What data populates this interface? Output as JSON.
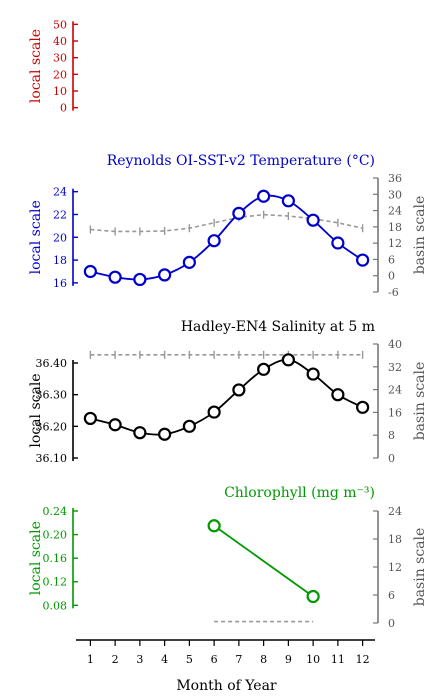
{
  "chart_data": {
    "type": "line",
    "x": [
      1,
      2,
      3,
      4,
      5,
      6,
      7,
      8,
      9,
      10,
      11,
      12
    ],
    "xlabel": "Month of Year",
    "xlim": [
      0.5,
      12.5
    ],
    "panels": [
      {
        "title": "",
        "left_label": "local scale",
        "left_ticks": [
          "0",
          "10",
          "20",
          "30",
          "40",
          "50"
        ],
        "ylim_left": [
          -5,
          55
        ],
        "color": "#cc0000",
        "series": []
      },
      {
        "title": "Reynolds OI-SST-v2 Temperature (°C)",
        "left_label": "local scale",
        "right_label": "basin scale",
        "left_ticks": [
          "16",
          "18",
          "20",
          "22",
          "24"
        ],
        "right_ticks": [
          "-6",
          "0",
          "6",
          "12",
          "18",
          "24",
          "30",
          "36"
        ],
        "ylim_left": [
          15.2,
          25.2
        ],
        "ylim_right": [
          -6,
          36
        ],
        "color": "#0000cc",
        "series": [
          {
            "role": "local",
            "x": [
              1,
              2,
              3,
              4,
              5,
              6,
              7,
              8,
              9,
              10,
              11,
              12
            ],
            "values": [
              17.0,
              16.5,
              16.3,
              16.7,
              17.8,
              19.7,
              22.1,
              23.6,
              23.2,
              21.5,
              19.5,
              18.0
            ]
          },
          {
            "role": "basin",
            "x": [
              1,
              2,
              3,
              4,
              5,
              6,
              7,
              8,
              9,
              10,
              11,
              12
            ],
            "values": [
              17.0,
              16.3,
              16.3,
              16.5,
              17.5,
              19.5,
              21.5,
              22.5,
              22.0,
              21.0,
              19.5,
              17.5
            ]
          }
        ]
      },
      {
        "title": "Hadley-EN4 Salinity at 5 m",
        "left_label": "local scale",
        "right_label": "basin scale",
        "left_ticks": [
          "36.10",
          "36.20",
          "36.30",
          "36.40"
        ],
        "right_ticks": [
          "0",
          "8",
          "16",
          "24",
          "32",
          "40"
        ],
        "ylim_left": [
          36.1,
          36.46
        ],
        "ylim_right": [
          0,
          40
        ],
        "color": "#000000",
        "series": [
          {
            "role": "local",
            "x": [
              1,
              2,
              3,
              4,
              5,
              6,
              7,
              8,
              9,
              10,
              11,
              12
            ],
            "values": [
              36.225,
              36.205,
              36.18,
              36.175,
              36.2,
              36.245,
              36.315,
              36.38,
              36.41,
              36.365,
              36.3,
              36.26
            ]
          },
          {
            "role": "basin",
            "x": [
              1,
              2,
              3,
              4,
              5,
              6,
              7,
              8,
              9,
              10,
              11,
              12
            ],
            "values": [
              36.2,
              36.2,
              36.2,
              36.2,
              36.2,
              36.2,
              36.2,
              36.2,
              36.2,
              36.2,
              36.2,
              36.2
            ]
          }
        ]
      },
      {
        "title": "Chlorophyll (mg m⁻³)",
        "left_label": "local scale",
        "right_label": "basin scale",
        "left_ticks": [
          "0.08",
          "0.12",
          "0.16",
          "0.20",
          "0.24"
        ],
        "right_ticks": [
          "0",
          "6",
          "12",
          "18",
          "24"
        ],
        "ylim_left": [
          0.05,
          0.24
        ],
        "ylim_right": [
          0,
          24
        ],
        "color": "#009900",
        "series": [
          {
            "role": "local",
            "x": [
              6,
              10
            ],
            "values": [
              0.215,
              0.095
            ]
          },
          {
            "role": "basin",
            "x": [
              6,
              10
            ],
            "values": [
              0.3,
              0.3
            ]
          }
        ]
      }
    ]
  }
}
